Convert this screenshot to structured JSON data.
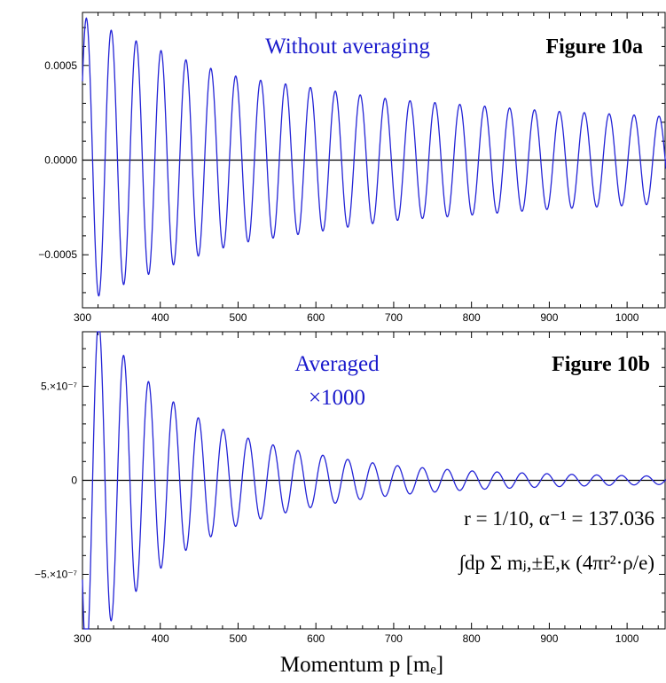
{
  "colors": {
    "curve": "#2424d6",
    "axis": "#000000",
    "annotation": "#1a1acc"
  },
  "chart_data": [
    {
      "type": "line",
      "panel": "a",
      "xlim": [
        300,
        1050
      ],
      "ylim": [
        -0.00078,
        0.00078
      ],
      "x_ticks": [
        300,
        400,
        500,
        600,
        700,
        800,
        900,
        1000
      ],
      "x_tick_labels": [
        "300",
        "400",
        "500",
        "600",
        "700",
        "800",
        "900",
        "1000"
      ],
      "y_ticks": [
        0.0005,
        0.0,
        -0.0005
      ],
      "y_tick_labels": [
        "0.0005",
        "0.0000",
        "−0.0005"
      ],
      "annotation": "Without averaging",
      "figure_label": "Figure 10a",
      "series": [
        {
          "oscillation_period": 32,
          "first_peak_x": 305,
          "envelope": [
            [
              305,
              0.00075
            ],
            [
              340,
              0.00068
            ],
            [
              400,
              0.00058
            ],
            [
              500,
              0.00044
            ],
            [
              600,
              0.00038
            ],
            [
              700,
              0.00032
            ],
            [
              800,
              0.00029
            ],
            [
              900,
              0.00026
            ],
            [
              1000,
              0.00024
            ],
            [
              1050,
              0.00023
            ]
          ]
        }
      ]
    },
    {
      "type": "line",
      "panel": "b",
      "xlim": [
        300,
        1050
      ],
      "ylim": [
        -7.9e-07,
        7.9e-07
      ],
      "x_ticks": [
        300,
        400,
        500,
        600,
        700,
        800,
        900,
        1000
      ],
      "x_tick_labels": [
        "300",
        "400",
        "500",
        "600",
        "700",
        "800",
        "900",
        "1000"
      ],
      "y_ticks": [
        5e-07,
        0,
        -5e-07
      ],
      "y_tick_labels": [
        "5.×10⁻⁷",
        "0",
        "−5.×10⁻⁷"
      ],
      "annotation_lines": [
        "Averaged",
        "×1000"
      ],
      "figure_label": "Figure 10b",
      "parameters": "r = 1/10,   α⁻¹ = 137.036",
      "formula": "∫dp Σ mⱼ,±E,κ (4πr²·ρ/e)",
      "series": [
        {
          "oscillation_period": 32,
          "first_peak_x": 321,
          "envelope": [
            [
              305,
              9.5e-07
            ],
            [
              321,
              8.4e-07
            ],
            [
              340,
              7.3e-07
            ],
            [
              400,
              4.7e-07
            ],
            [
              450,
              3.3e-07
            ],
            [
              500,
              2.4e-07
            ],
            [
              600,
              1.4e-07
            ],
            [
              700,
              8e-08
            ],
            [
              800,
              5e-08
            ],
            [
              900,
              3.5e-08
            ],
            [
              1000,
              2.5e-08
            ],
            [
              1050,
              2.2e-08
            ]
          ]
        }
      ]
    }
  ],
  "x_axis_label": "Momentum p   [mₑ]"
}
